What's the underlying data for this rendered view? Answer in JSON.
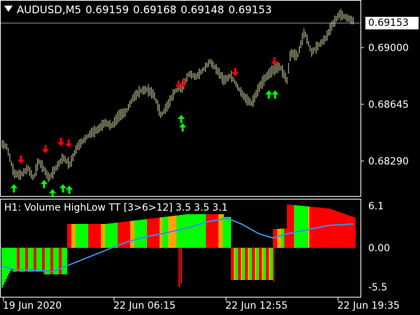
{
  "header": {
    "symbol_tf": "AUDUSD,M5",
    "open": "0.69159",
    "high": "0.69168",
    "low": "0.69148",
    "close": "0.69153"
  },
  "price_axis": {
    "current_price": "0.69153",
    "ticks": [
      "0.69000",
      "0.68645",
      "0.68290"
    ]
  },
  "indicator": {
    "name": "H1: Volume HighLow TT [3>6>12]",
    "values": [
      "3.5",
      "3.5",
      "3.1"
    ],
    "ticks": [
      "6.1",
      "0.00",
      "-5.5"
    ]
  },
  "time_axis": {
    "labels": [
      "19 Jun 2020",
      "22 Jun 06:15",
      "22 Jun 12:55",
      "22 Jun 19:35"
    ]
  },
  "colors": {
    "background": "#000000",
    "candles": "#d8d8a8",
    "buy_arrow": "#00ff00",
    "sell_arrow": "#ff0000",
    "hist_green": "#00ff00",
    "hist_red": "#ff0000",
    "hist_orange": "#ffa500",
    "signal_line": "#3a8fe0",
    "current_price_line": "#8fa0c0"
  },
  "arrows": {
    "sell": [
      "sell",
      "sell",
      "sell",
      "sell",
      "sell",
      "sell",
      "sell"
    ],
    "buy": [
      "buy",
      "buy",
      "buy",
      "buy",
      "buy",
      "buy",
      "buy",
      "buy",
      "buy",
      "buy"
    ]
  }
}
